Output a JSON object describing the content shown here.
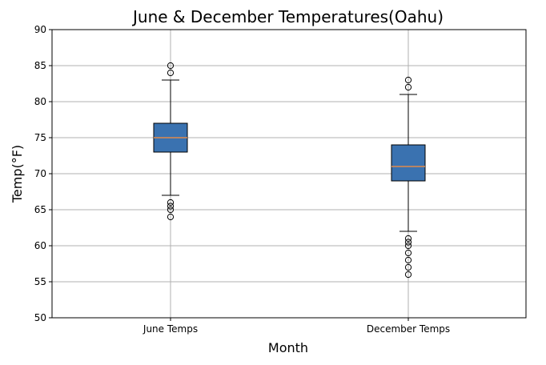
{
  "chart_data": {
    "type": "box",
    "title": "June & December Temperatures(Oahu)",
    "xlabel": "Month",
    "ylabel": "Temp(°F)",
    "ylim": [
      50,
      90
    ],
    "yticks": [
      50,
      55,
      60,
      65,
      70,
      75,
      80,
      85,
      90
    ],
    "grid": true,
    "categories": [
      "June Temps",
      "December Temps"
    ],
    "boxes": [
      {
        "category": "June Temps",
        "whisker_low": 67,
        "q1": 73,
        "median": 75,
        "q3": 77,
        "whisker_high": 83,
        "outliers": [
          64,
          65,
          65.5,
          66,
          84,
          85
        ]
      },
      {
        "category": "December Temps",
        "whisker_low": 62,
        "q1": 69,
        "median": 71,
        "q3": 74,
        "whisker_high": 81,
        "outliers": [
          56,
          57,
          58,
          59,
          60,
          60.5,
          61,
          82,
          83
        ]
      }
    ],
    "colors": {
      "box_fill": "#3a72b0",
      "box_edge": "#000000",
      "median": "#e08a4c",
      "grid": "#b0b0b0",
      "outlier_edge": "#000000"
    }
  }
}
